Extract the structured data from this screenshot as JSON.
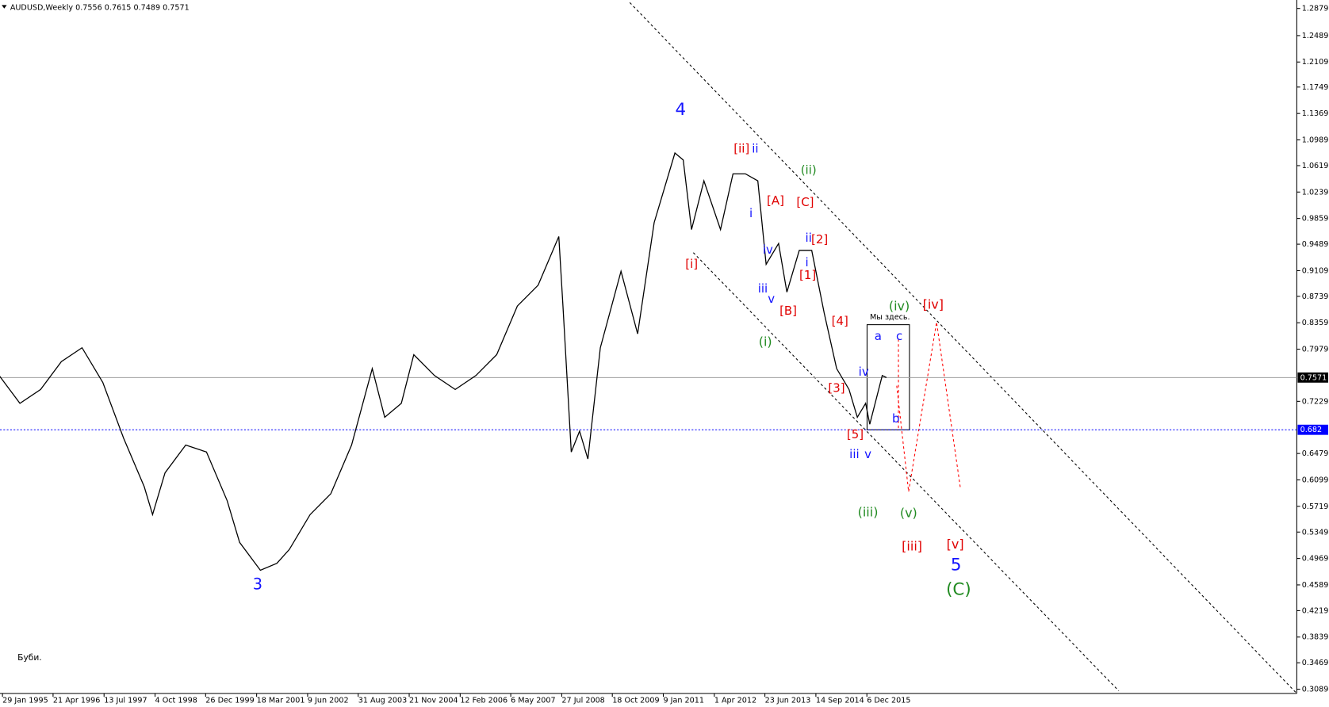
{
  "chart_data": {
    "type": "line",
    "title": "AUDUSD,Weekly  0.7556 0.7615 0.7489 0.7571",
    "series": [
      {
        "name": "AUDUSD",
        "color": "#000000",
        "x": [
          1995.0,
          1995.5,
          1996.0,
          1996.5,
          1997.0,
          1997.5,
          1998.0,
          1998.5,
          1998.7,
          1999.0,
          1999.5,
          2000.0,
          2000.5,
          2000.8,
          2001.3,
          2001.7,
          2002.0,
          2002.5,
          2003.0,
          2003.5,
          2004.0,
          2004.3,
          2004.7,
          2005.0,
          2005.5,
          2006.0,
          2006.5,
          2007.0,
          2007.5,
          2008.0,
          2008.5,
          2008.6,
          2008.8,
          2009.0,
          2009.2,
          2009.5,
          2010.0,
          2010.4,
          2010.8,
          2011.3,
          2011.5,
          2011.7,
          2012.0,
          2012.4,
          2012.7,
          2013.0,
          2013.3,
          2013.5,
          2013.8,
          2014.0,
          2014.3,
          2014.6,
          2014.9,
          2015.2,
          2015.5,
          2015.7,
          2015.9,
          2016.0,
          2016.3,
          2016.4
        ],
        "values": [
          0.76,
          0.72,
          0.74,
          0.78,
          0.8,
          0.75,
          0.67,
          0.6,
          0.56,
          0.62,
          0.66,
          0.65,
          0.58,
          0.52,
          0.48,
          0.49,
          0.51,
          0.56,
          0.59,
          0.66,
          0.77,
          0.7,
          0.72,
          0.79,
          0.76,
          0.74,
          0.76,
          0.79,
          0.86,
          0.89,
          0.96,
          0.86,
          0.65,
          0.68,
          0.64,
          0.8,
          0.91,
          0.82,
          0.98,
          1.08,
          1.07,
          0.97,
          1.04,
          0.97,
          1.05,
          1.05,
          1.04,
          0.92,
          0.95,
          0.88,
          0.94,
          0.94,
          0.85,
          0.77,
          0.74,
          0.7,
          0.72,
          0.69,
          0.76,
          0.7571
        ]
      }
    ],
    "xlim": [
      1995.02,
      2026.3
    ],
    "xticks": [
      {
        "value": 1995.08,
        "label": "29 Jan 1995"
      },
      {
        "value": 1996.3,
        "label": "21 Apr 1996"
      },
      {
        "value": 1997.53,
        "label": "13 Jul 1997"
      },
      {
        "value": 1998.76,
        "label": "4 Oct 1998"
      },
      {
        "value": 1999.98,
        "label": "26 Dec 1999"
      },
      {
        "value": 2001.21,
        "label": "18 Mar 2001"
      },
      {
        "value": 2002.44,
        "label": "9 Jun 2002"
      },
      {
        "value": 2003.66,
        "label": "31 Aug 2003"
      },
      {
        "value": 2004.89,
        "label": "21 Nov 2004"
      },
      {
        "value": 2006.12,
        "label": "12 Feb 2006"
      },
      {
        "value": 2007.34,
        "label": "6 May 2007"
      },
      {
        "value": 2008.57,
        "label": "27 Jul 2008"
      },
      {
        "value": 2009.79,
        "label": "18 Oct 2009"
      },
      {
        "value": 2011.02,
        "label": "9 Jan 2011"
      },
      {
        "value": 2012.25,
        "label": "1 Apr 2012"
      },
      {
        "value": 2013.47,
        "label": "23 Jun 2013"
      },
      {
        "value": 2014.7,
        "label": "14 Sep 2014"
      },
      {
        "value": 2015.93,
        "label": "6 Dec 2015"
      }
    ],
    "ylim": [
      0.3028,
      1.3001
    ],
    "yticks": [
      1.2879,
      1.2489,
      1.2109,
      1.1749,
      1.1369,
      1.0989,
      1.0619,
      1.0239,
      0.9859,
      0.9489,
      0.9109,
      0.8739,
      0.8359,
      0.7979,
      0.7229,
      0.6479,
      0.6099,
      0.5719,
      0.5349,
      0.4969,
      0.4589,
      0.4219,
      0.3839,
      0.3469,
      0.3089
    ],
    "price_lines": [
      {
        "value": 0.7571,
        "color": "#a0a0a0"
      },
      {
        "value": 0.682,
        "color": "#0000ff"
      }
    ],
    "annotations": [
      {
        "text": "4",
        "color": "#1414ff"
      },
      {
        "text": "3",
        "color": "#1414ff"
      },
      {
        "text": "[i]",
        "color": "#e00000"
      },
      {
        "text": "[ii]",
        "color": "#e00000"
      },
      {
        "text": "ii",
        "color": "#1414ff"
      },
      {
        "text": "(ii)",
        "color": "#228b22"
      },
      {
        "text": "[A]",
        "color": "#e00000"
      },
      {
        "text": "[C]",
        "color": "#e00000"
      },
      {
        "text": "i",
        "color": "#1414ff"
      },
      {
        "text": "ii",
        "color": "#1414ff"
      },
      {
        "text": "[2]",
        "color": "#e00000"
      },
      {
        "text": "iv",
        "color": "#1414ff"
      },
      {
        "text": "i",
        "color": "#1414ff"
      },
      {
        "text": "[1]",
        "color": "#e00000"
      },
      {
        "text": "iii",
        "color": "#1414ff"
      },
      {
        "text": "v",
        "color": "#1414ff"
      },
      {
        "text": "(iv)",
        "color": "#228b22"
      },
      {
        "text": "[iv]",
        "color": "#e00000"
      },
      {
        "text": "[B]",
        "color": "#e00000"
      },
      {
        "text": "[4]",
        "color": "#e00000"
      },
      {
        "text": "(i)",
        "color": "#228b22"
      },
      {
        "text": "a",
        "color": "#1414ff"
      },
      {
        "text": "c",
        "color": "#1414ff"
      },
      {
        "text": "iv",
        "color": "#1414ff"
      },
      {
        "text": "[3]",
        "color": "#e00000"
      },
      {
        "text": "b",
        "color": "#1414ff"
      },
      {
        "text": "[5]",
        "color": "#e00000"
      },
      {
        "text": "iii",
        "color": "#1414ff"
      },
      {
        "text": "v",
        "color": "#1414ff"
      },
      {
        "text": "(iii)",
        "color": "#228b22"
      },
      {
        "text": "(v)",
        "color": "#228b22"
      },
      {
        "text": "[iii]",
        "color": "#e00000"
      },
      {
        "text": "[v]",
        "color": "#e00000"
      },
      {
        "text": "5",
        "color": "#1414ff"
      },
      {
        "text": "(C)",
        "color": "#228b22"
      },
      {
        "text": "Мы здесь.",
        "color": "#000000"
      },
      {
        "text": "Буби.",
        "color": "#000000"
      }
    ]
  }
}
